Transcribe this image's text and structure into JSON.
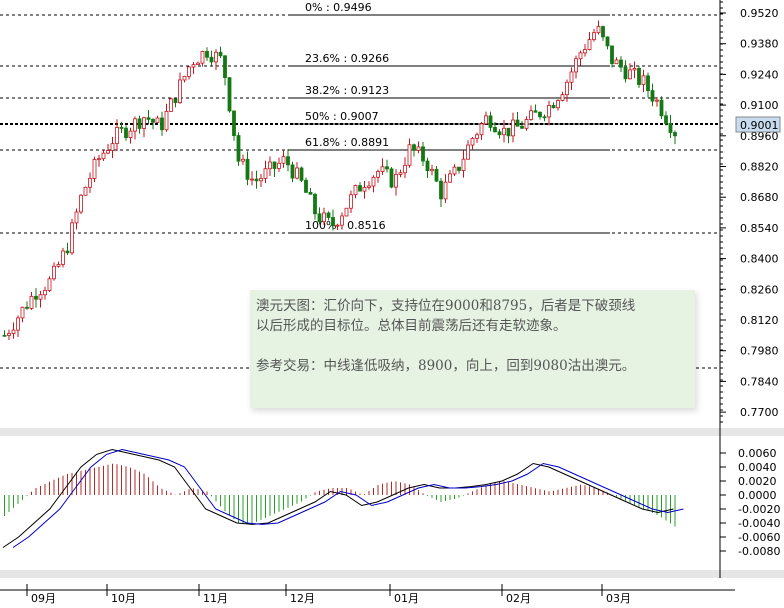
{
  "chart_data": {
    "type": "candlestick",
    "price_axis": {
      "ticks": [
        "0.9520",
        "0.9380",
        "0.9240",
        "0.9100",
        "0.8960",
        "0.8820",
        "0.8680",
        "0.8540",
        "0.8400",
        "0.8260",
        "0.8120",
        "0.7980",
        "0.7840",
        "0.7700"
      ],
      "range": [
        0.77,
        0.952
      ]
    },
    "current_price": "0.9001",
    "fibonacci": [
      {
        "label": "0%  : 0.9496",
        "value": 0.9496
      },
      {
        "label": "23.6% : 0.9266",
        "value": 0.9266
      },
      {
        "label": "38.2% : 0.9123",
        "value": 0.9123
      },
      {
        "label": "50%   : 0.9007",
        "value": 0.9007
      },
      {
        "label": "61.8% : 0.8891",
        "value": 0.8891
      },
      {
        "label": "100%  : 0.8516",
        "value": 0.8516
      }
    ],
    "x_ticks": [
      "09月",
      "10月",
      "11月",
      "12月",
      "01月",
      "02月",
      "03月"
    ],
    "approximate_closes": [
      0.805,
      0.815,
      0.825,
      0.83,
      0.845,
      0.87,
      0.885,
      0.895,
      0.9,
      0.905,
      0.9,
      0.915,
      0.93,
      0.935,
      0.93,
      0.885,
      0.875,
      0.88,
      0.885,
      0.875,
      0.86,
      0.855,
      0.865,
      0.875,
      0.88,
      0.875,
      0.89,
      0.885,
      0.87,
      0.88,
      0.895,
      0.905,
      0.898,
      0.9,
      0.905,
      0.91,
      0.92,
      0.935,
      0.945,
      0.93,
      0.925,
      0.92,
      0.91,
      0.898
    ],
    "macd_axis": {
      "ticks": [
        "0.0060",
        "0.0040",
        "0.0020",
        "0.0000",
        "-0.0020",
        "-0.0040",
        "-0.0060",
        "-0.0080"
      ],
      "range": [
        -0.008,
        0.006
      ]
    },
    "macd_histogram_approx": [
      -0.003,
      -0.001,
      0.001,
      0.002,
      0.003,
      0.0035,
      0.004,
      0.0045,
      0.004,
      0.003,
      0.001,
      0,
      0.001,
      0.0005,
      -0.002,
      -0.004,
      -0.004,
      -0.003,
      -0.002,
      -0.001,
      0.0005,
      0.001,
      0.001,
      0,
      0.0015,
      0.002,
      0.0015,
      0,
      -0.001,
      -0.0005,
      0.0005,
      0.0015,
      0.002,
      0.0015,
      0.001,
      0.0005,
      0.001,
      0.0015,
      0.001,
      0,
      -0.001,
      -0.002,
      -0.003,
      -0.0045
    ],
    "macd_line_approx": [
      -0.0075,
      -0.006,
      -0.004,
      -0.002,
      0.001,
      0.004,
      0.0058,
      0.0065,
      0.006,
      0.0055,
      0.005,
      0.004,
      0.001,
      -0.002,
      -0.003,
      -0.004,
      -0.0042,
      -0.004,
      -0.003,
      -0.002,
      -0.001,
      0.0005,
      0,
      -0.0015,
      -0.001,
      0,
      0.001,
      0.0015,
      0.001,
      0.001,
      0.0012,
      0.0015,
      0.002,
      0.003,
      0.0045,
      0.004,
      0.003,
      0.002,
      0.001,
      0,
      -0.001,
      -0.002,
      -0.0025,
      -0.002
    ],
    "colors": {
      "up": "#c8141e",
      "down": "#147814",
      "signal": "#0000c8",
      "macd": "#000000"
    }
  },
  "note": {
    "line1": "澳元天图：汇价向下，支持位在9000和8795，后者是下破颈线",
    "line2": "以后形成的目标位。总体目前震荡后还有走软迹象。",
    "line3": "参考交易：中线逢低吸纳，8900，向上，回到9080沽出澳元。"
  }
}
